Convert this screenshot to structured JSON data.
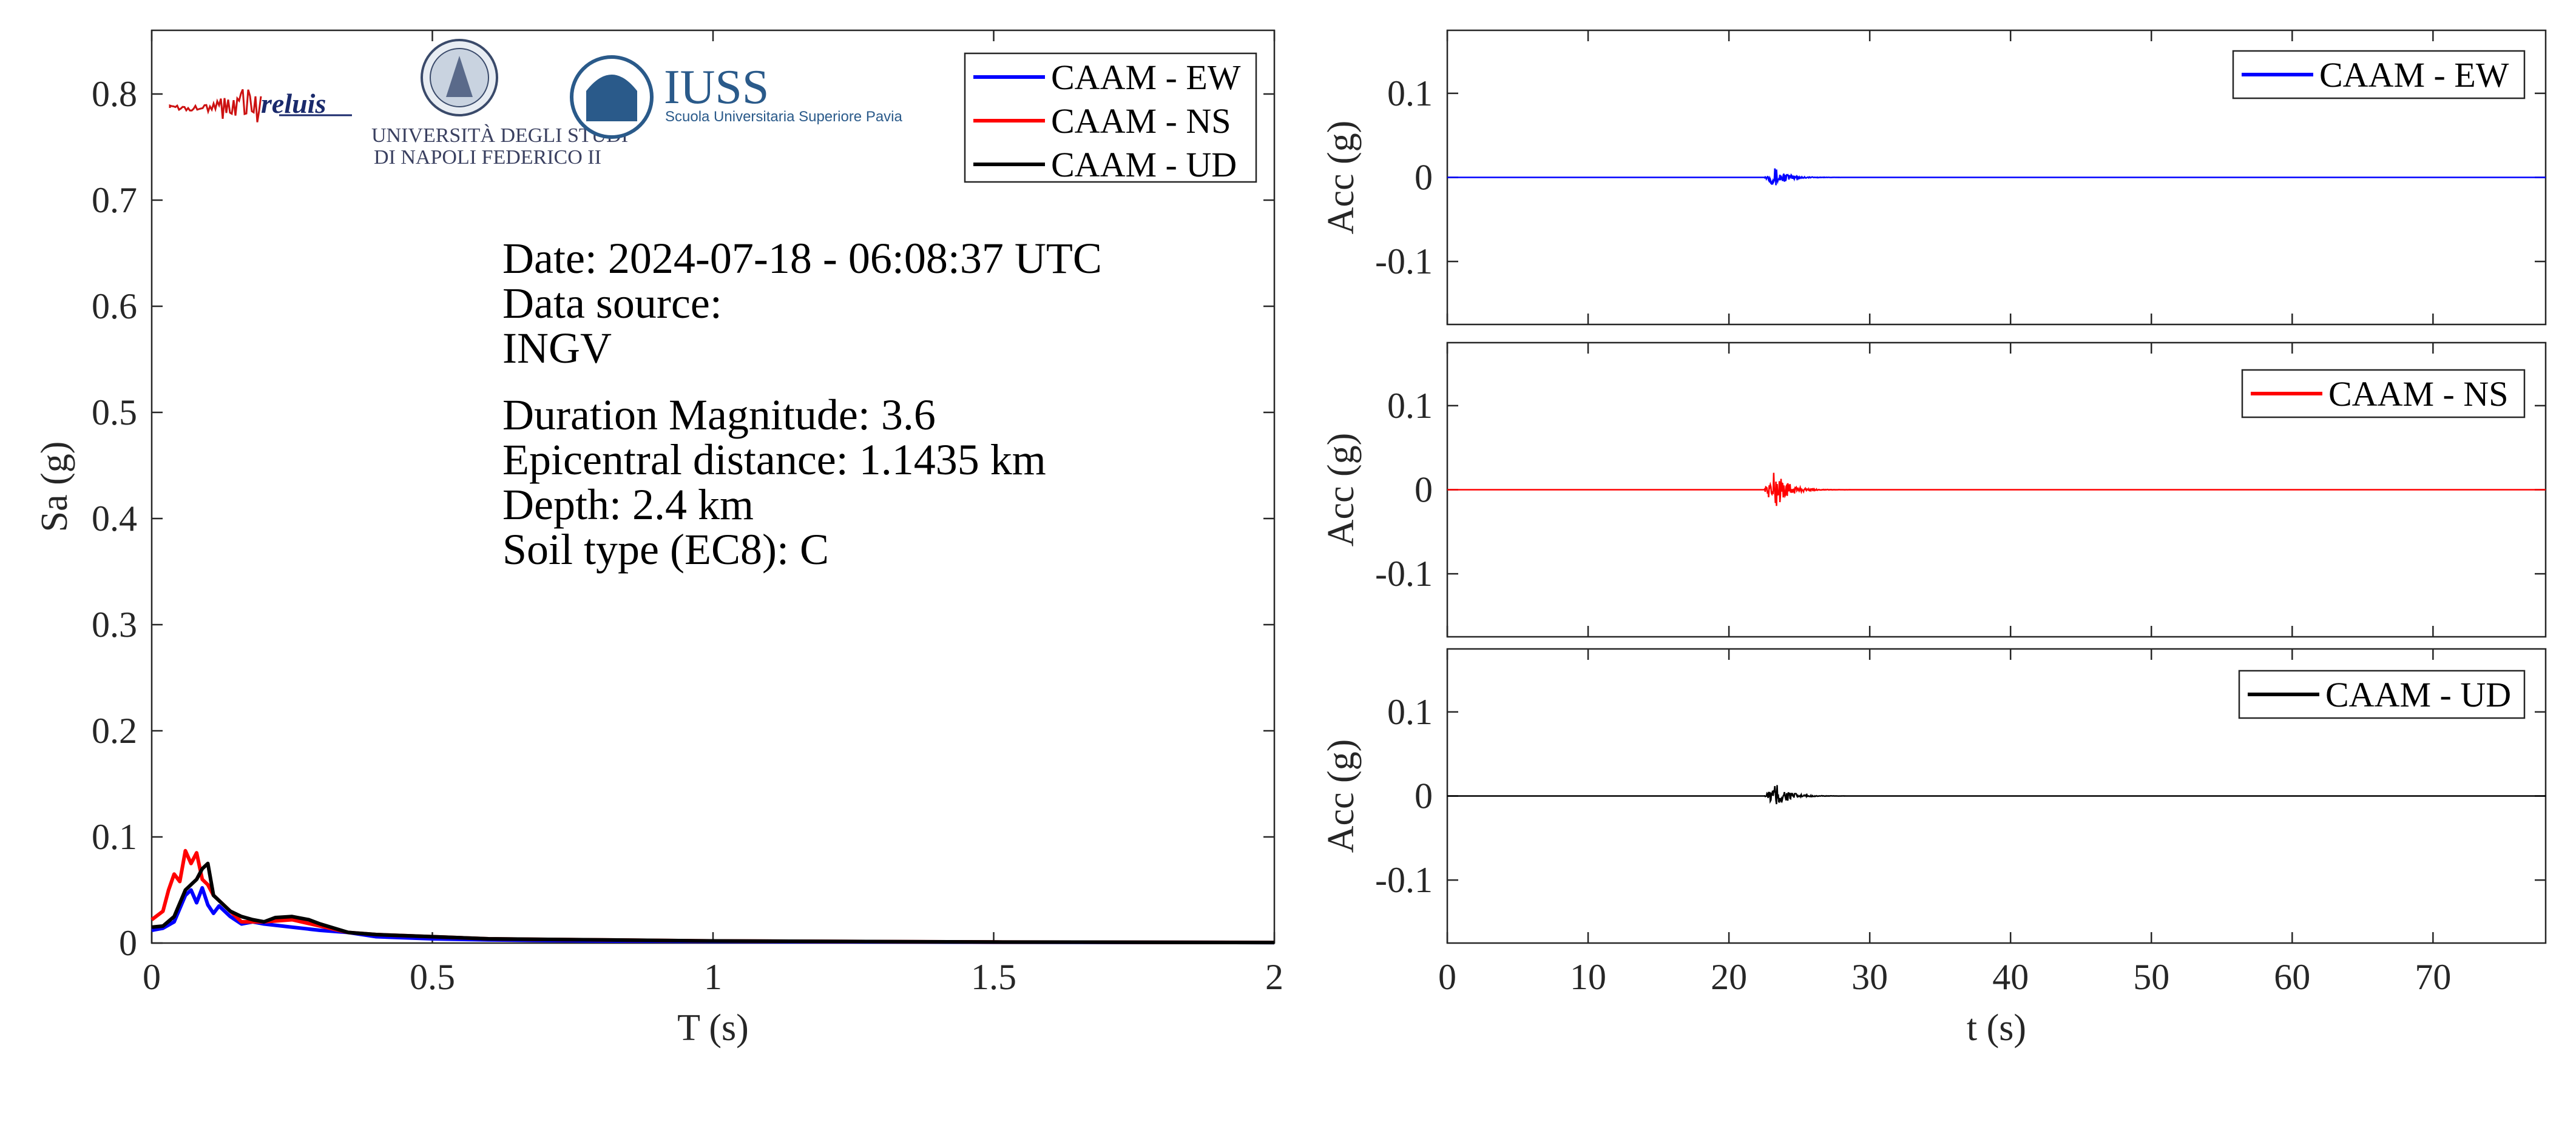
{
  "info": {
    "date": "Date: 2024-07-18 - 06:08:37 UTC",
    "source_label": "Data source:",
    "source_value": "INGV",
    "magnitude": "Duration Magnitude: 3.6",
    "distance": "Epicentral distance: 1.1435 km",
    "depth": "Depth: 2.4 km",
    "soil": "Soil type (EC8): C"
  },
  "logos": {
    "reluis": "reluis",
    "unina_line1": "UNIVERSITÀ DEGLI STUDI",
    "unina_line2": "DI NAPOLI FEDERICO II",
    "iuss_title": "IUSS",
    "iuss_sub": "Scuola Universitaria Superiore Pavia"
  },
  "colors": {
    "ew": "#0000ff",
    "ns": "#ff0000",
    "ud": "#000000"
  },
  "chart_data": [
    {
      "type": "line",
      "xlabel": "T (s)",
      "ylabel": "Sa (g)",
      "xlim": [
        0,
        2
      ],
      "ylim": [
        0,
        0.86
      ],
      "xticks": [
        0,
        0.5,
        1,
        1.5,
        2
      ],
      "xtick_labels": [
        "0",
        "0.5",
        "1",
        "1.5",
        "2"
      ],
      "yticks": [
        0,
        0.1,
        0.2,
        0.3,
        0.4,
        0.5,
        0.6,
        0.7,
        0.8
      ],
      "ytick_labels": [
        "0",
        "0.1",
        "0.2",
        "0.3",
        "0.4",
        "0.5",
        "0.6",
        "0.7",
        "0.8"
      ],
      "legend_position": "top-right",
      "grid": false,
      "series": [
        {
          "name": "CAAM - EW",
          "color": "#0000ff",
          "x": [
            0,
            0.02,
            0.04,
            0.06,
            0.07,
            0.08,
            0.09,
            0.1,
            0.11,
            0.12,
            0.14,
            0.16,
            0.18,
            0.2,
            0.25,
            0.3,
            0.35,
            0.4,
            0.5,
            0.6,
            0.8,
            1.0,
            1.5,
            2.0
          ],
          "y": [
            0.012,
            0.014,
            0.02,
            0.045,
            0.05,
            0.038,
            0.052,
            0.036,
            0.028,
            0.035,
            0.025,
            0.018,
            0.02,
            0.018,
            0.015,
            0.012,
            0.01,
            0.006,
            0.004,
            0.003,
            0.002,
            0.0015,
            0.0008,
            0.0005
          ]
        },
        {
          "name": "CAAM - NS",
          "color": "#ff0000",
          "x": [
            0,
            0.02,
            0.03,
            0.04,
            0.05,
            0.06,
            0.07,
            0.08,
            0.09,
            0.1,
            0.11,
            0.12,
            0.14,
            0.16,
            0.2,
            0.25,
            0.3,
            0.35,
            0.4,
            0.5,
            0.6,
            0.8,
            1.0,
            1.5,
            2.0
          ],
          "y": [
            0.022,
            0.03,
            0.05,
            0.065,
            0.058,
            0.087,
            0.075,
            0.085,
            0.06,
            0.055,
            0.045,
            0.04,
            0.03,
            0.02,
            0.02,
            0.022,
            0.016,
            0.01,
            0.008,
            0.006,
            0.004,
            0.003,
            0.002,
            0.001,
            0.0006
          ]
        },
        {
          "name": "CAAM - UD",
          "color": "#000000",
          "x": [
            0,
            0.02,
            0.04,
            0.06,
            0.08,
            0.09,
            0.1,
            0.11,
            0.12,
            0.14,
            0.16,
            0.18,
            0.2,
            0.22,
            0.25,
            0.28,
            0.3,
            0.35,
            0.4,
            0.5,
            0.6,
            0.8,
            1.0,
            1.5,
            2.0
          ],
          "y": [
            0.015,
            0.016,
            0.025,
            0.05,
            0.06,
            0.07,
            0.075,
            0.045,
            0.04,
            0.03,
            0.025,
            0.022,
            0.02,
            0.024,
            0.025,
            0.022,
            0.018,
            0.01,
            0.008,
            0.006,
            0.004,
            0.003,
            0.002,
            0.001,
            0.0005
          ]
        }
      ]
    },
    {
      "type": "line",
      "xlabel": "",
      "ylabel": "Acc (g)",
      "xlim": [
        0,
        78
      ],
      "ylim": [
        -0.175,
        0.175
      ],
      "yticks": [
        -0.1,
        0,
        0.1
      ],
      "ytick_labels": [
        "-0.1",
        "0",
        "0.1"
      ],
      "legend_position": "top-right",
      "series": [
        {
          "name": "CAAM - EW",
          "color": "#0000ff",
          "peak": 0.012,
          "event_start": 22.5,
          "event_peak": 23.3,
          "event_end": 28.0
        }
      ]
    },
    {
      "type": "line",
      "xlabel": "",
      "ylabel": "Acc (g)",
      "xlim": [
        0,
        78
      ],
      "ylim": [
        -0.175,
        0.175
      ],
      "yticks": [
        -0.1,
        0,
        0.1
      ],
      "ytick_labels": [
        "-0.1",
        "0",
        "0.1"
      ],
      "legend_position": "top-right",
      "series": [
        {
          "name": "CAAM - NS",
          "color": "#ff0000",
          "peak": 0.024,
          "event_start": 22.5,
          "event_peak": 23.3,
          "event_end": 29.0
        }
      ]
    },
    {
      "type": "line",
      "xlabel": "t (s)",
      "ylabel": "Acc (g)",
      "xlim": [
        0,
        78
      ],
      "ylim": [
        -0.175,
        0.175
      ],
      "xticks": [
        0,
        10,
        20,
        30,
        40,
        50,
        60,
        70
      ],
      "xtick_labels": [
        "0",
        "10",
        "20",
        "30",
        "40",
        "50",
        "60",
        "70"
      ],
      "yticks": [
        -0.1,
        0,
        0.1
      ],
      "ytick_labels": [
        "-0.1",
        "0",
        "0.1"
      ],
      "legend_position": "top-right",
      "series": [
        {
          "name": "CAAM - UD",
          "color": "#000000",
          "peak": 0.016,
          "event_start": 22.5,
          "event_peak": 23.4,
          "event_end": 29.0
        }
      ]
    }
  ]
}
